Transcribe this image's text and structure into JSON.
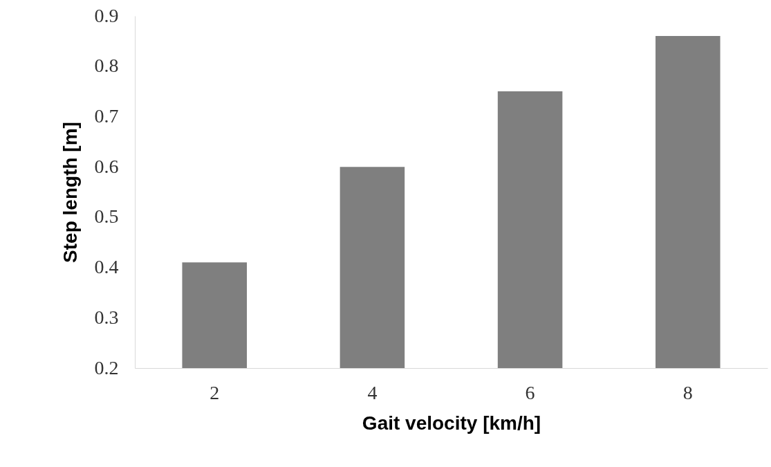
{
  "chart_data": {
    "type": "bar",
    "xlabel": "Gait velocity [km/h]",
    "ylabel": "Step length [m]",
    "categories": [
      "2",
      "4",
      "6",
      "8"
    ],
    "values": [
      0.41,
      0.6,
      0.75,
      0.86
    ],
    "color": "#7f7f7f",
    "ylim": [
      0.2,
      0.9
    ],
    "yticks": [
      0.2,
      0.3,
      0.4,
      0.5,
      0.6,
      0.7,
      0.8,
      0.9
    ],
    "grid": false
  }
}
